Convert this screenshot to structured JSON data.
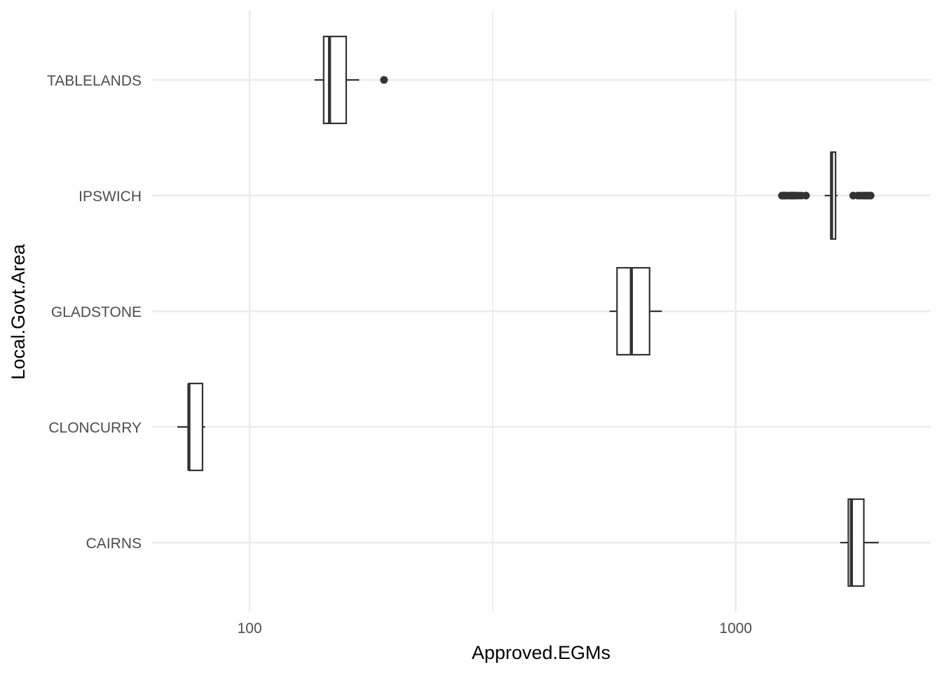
{
  "chart_data": {
    "type": "boxplot",
    "orientation": "horizontal",
    "xlabel": "Approved.EGMs",
    "ylabel": "Local.Govt.Area",
    "x_scale": "log10",
    "xlim": [
      63,
      2520
    ],
    "x_ticks": [
      100,
      1000
    ],
    "x_tick_labels": [
      "100",
      "1000"
    ],
    "grid": true,
    "categories": [
      "CAIRNS",
      "CLONCURRY",
      "GLADSTONE",
      "IPSWICH",
      "TABLELANDS"
    ],
    "series": [
      {
        "category": "CAIRNS",
        "whisker_low": 1640,
        "q1": 1705,
        "median": 1730,
        "q3": 1835,
        "whisker_high": 1970,
        "outliers": []
      },
      {
        "category": "CLONCURRY",
        "whisker_low": 71,
        "q1": 75,
        "median": 75,
        "q3": 80,
        "whisker_high": 81,
        "outliers": []
      },
      {
        "category": "GLADSTONE",
        "whisker_low": 550,
        "q1": 570,
        "median": 610,
        "q3": 665,
        "whisker_high": 705,
        "outliers": []
      },
      {
        "category": "IPSWICH",
        "whisker_low": 1525,
        "q1": 1570,
        "median": 1575,
        "q3": 1605,
        "whisker_high": 1620,
        "outliers": [
          1245,
          1255,
          1265,
          1275,
          1295,
          1305,
          1315,
          1325,
          1345,
          1365,
          1395,
          1745,
          1785,
          1810,
          1835,
          1855,
          1875,
          1895
        ]
      },
      {
        "category": "TABLELANDS",
        "whisker_low": 136,
        "q1": 142,
        "median": 146,
        "q3": 158,
        "whisker_high": 168,
        "outliers": [
          189
        ]
      }
    ]
  }
}
